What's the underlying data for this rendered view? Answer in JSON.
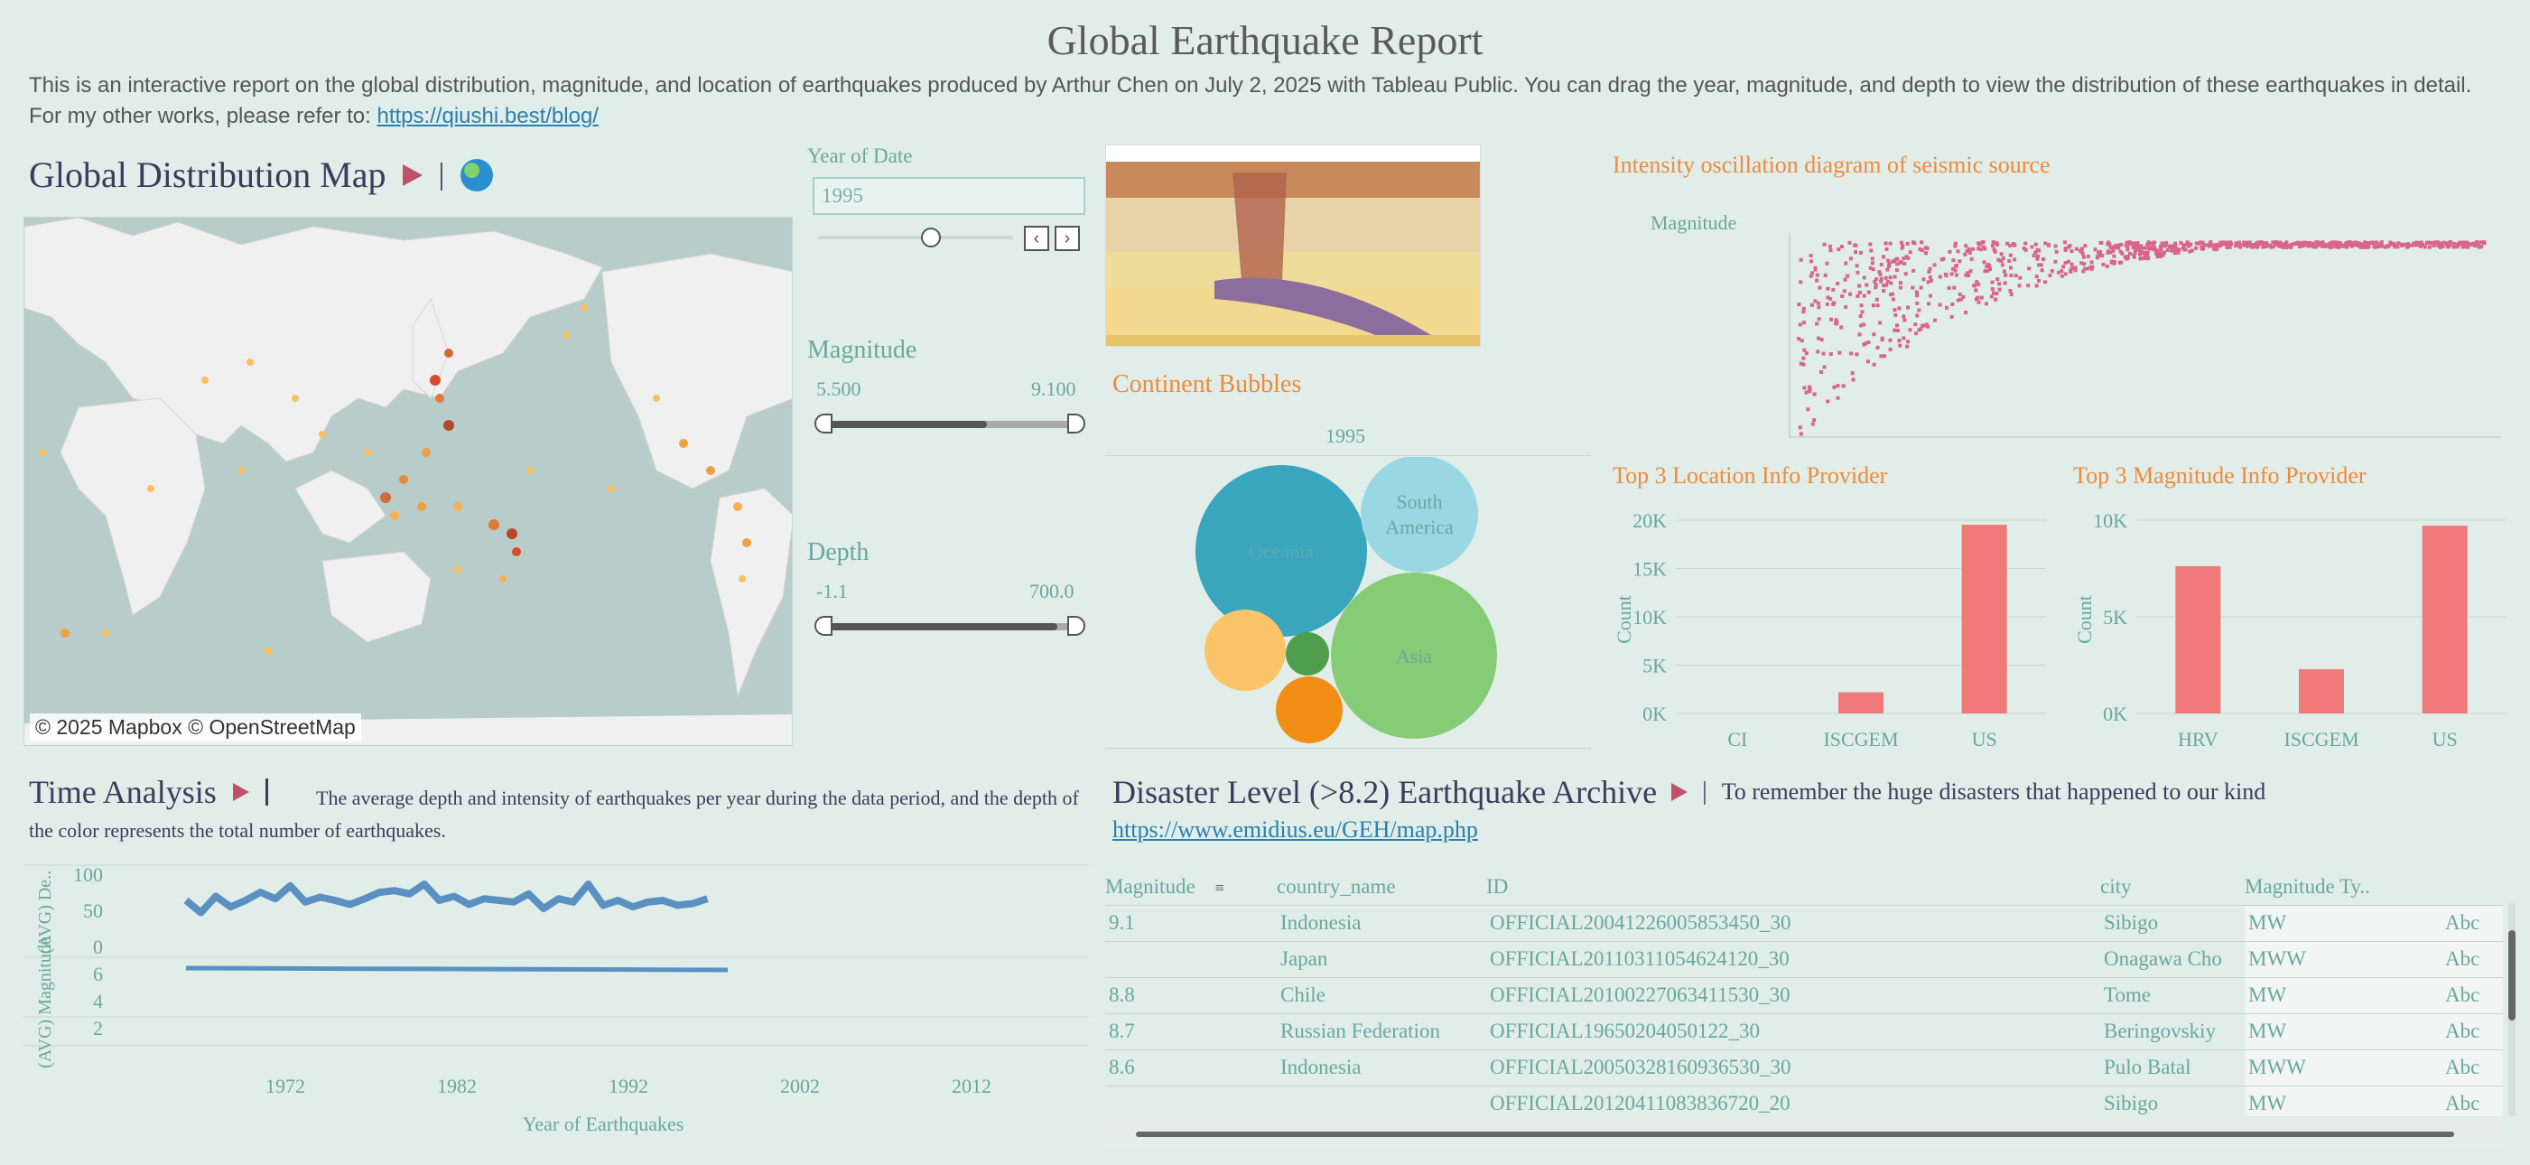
{
  "header": {
    "title": "Global Earthquake Report",
    "desc_text": "This is an interactive report on the global distribution, magnitude, and location of earthquakes produced by Arthur Chen on July 2, 2025 with Tableau Public. You can drag the year, magnitude, and depth to view the distribution of these earthquakes in detail. For my other works, please refer to: ",
    "desc_link": "https://qiushi.best/blog/"
  },
  "map_section": {
    "title": "Global Distribution Map",
    "separator": "|",
    "attribution": "© 2025 Mapbox © OpenStreetMap"
  },
  "filters": {
    "year": {
      "label": "Year of Date",
      "value": "1995"
    },
    "magnitude": {
      "label": "Magnitude",
      "min": "5.500",
      "max": "9.100",
      "fill": 0.65
    },
    "depth": {
      "label": "Depth",
      "min": "-1.1",
      "max": "700.0",
      "fill": 0.93
    }
  },
  "continent": {
    "title": "Continent Bubbles",
    "year": "1995",
    "bubbles": [
      {
        "name": "Oceania",
        "color": "#3aa6bd"
      },
      {
        "name": "South\nAmerica",
        "color": "#99d8e3"
      },
      {
        "name": "Asia",
        "color": "#86cc76"
      },
      {
        "name": "",
        "color": "#fcc468"
      },
      {
        "name": "",
        "color": "#4f9e4b"
      },
      {
        "name": "",
        "color": "#f08d14"
      }
    ]
  },
  "intensity": {
    "title": "Intensity oscillation diagram of seismic source",
    "ylabel": "Magnitude"
  },
  "top_location": {
    "title": "Top 3 Location Info Provider",
    "ylabel": "Count",
    "ticks": [
      "20K",
      "15K",
      "10K",
      "5K",
      "0K"
    ],
    "chart_data": {
      "type": "bar",
      "categories": [
        "CI",
        "ISCGEM",
        "US"
      ],
      "values": [
        0,
        2300,
        20500
      ],
      "ylim": [
        0,
        21000
      ]
    }
  },
  "top_magnitude": {
    "title": "Top 3 Magnitude Info Provider",
    "ylabel": "Count",
    "ticks": [
      "10K",
      "5K",
      "0K"
    ],
    "chart_data": {
      "type": "bar",
      "categories": [
        "HRV",
        "ISCGEM",
        "US"
      ],
      "values": [
        8000,
        2400,
        10200
      ],
      "ylim": [
        0,
        10500
      ]
    }
  },
  "time_analysis": {
    "title": "Time Analysis",
    "desc": "The average depth and intensity of earthquakes per year during the data period, and the depth of the color represents the total number of earthquakes.",
    "depth_axis": "(AVG) De..",
    "mag_axis": "(AVG) Magnitude",
    "depth_ticks": [
      "100",
      "50",
      "0"
    ],
    "mag_ticks": [
      "6",
      "4",
      "2"
    ],
    "x_ticks": [
      "1972",
      "1982",
      "1992",
      "2002",
      "2012"
    ],
    "xlabel": "Year of Earthquakes"
  },
  "archive": {
    "title": "Disaster Level (>8.2) Earthquake Archive",
    "separator": "|",
    "subtitle": "To remember the huge disasters that happened to our kind",
    "link": "https://www.emidius.eu/GEH/map.php",
    "columns": [
      "Magnitude",
      "country_name",
      "ID",
      "city",
      "Magnitude Ty..",
      ""
    ],
    "rows": [
      [
        "9.1",
        "Indonesia",
        "OFFICIAL20041226005853450_30",
        "Sibigo",
        "MW",
        "Abc"
      ],
      [
        "",
        "Japan",
        "OFFICIAL20110311054624120_30",
        "Onagawa Cho",
        "MWW",
        "Abc"
      ],
      [
        "8.8",
        "Chile",
        "OFFICIAL20100227063411530_30",
        "Tome",
        "MW",
        "Abc"
      ],
      [
        "8.7",
        "Russian Federation",
        "OFFICIAL19650204050122_30",
        "Beringovskiy",
        "MW",
        "Abc"
      ],
      [
        "8.6",
        "Indonesia",
        "OFFICIAL20050328160936530_30",
        "Pulo Batal",
        "MWW",
        "Abc"
      ],
      [
        "",
        "",
        "OFFICIAL20120411083836720_20",
        "Sibigo",
        "MW",
        "Abc"
      ]
    ]
  }
}
